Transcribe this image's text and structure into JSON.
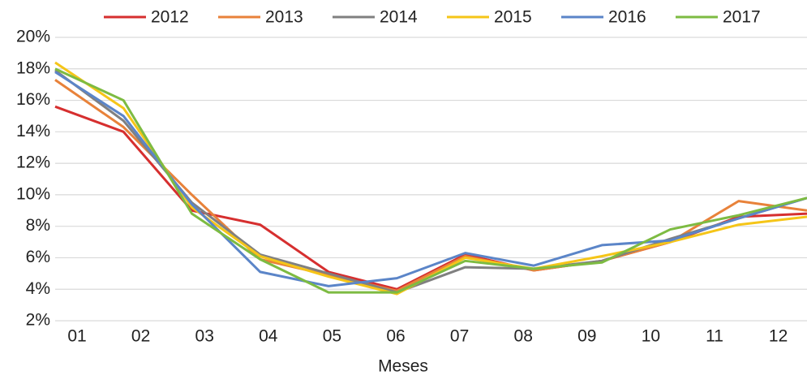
{
  "chart_data": {
    "type": "line",
    "x_label": "Meses",
    "categories": [
      "01",
      "02",
      "03",
      "04",
      "05",
      "06",
      "07",
      "08",
      "09",
      "10",
      "11",
      "12"
    ],
    "series": [
      {
        "name": "2012",
        "color": "#d62f2f",
        "values": [
          15.6,
          14.0,
          9.0,
          8.1,
          5.1,
          4.0,
          6.2,
          5.2,
          5.8,
          7.0,
          8.6,
          8.8
        ]
      },
      {
        "name": "2013",
        "color": "#e8823a",
        "values": [
          17.3,
          14.3,
          10.0,
          5.9,
          4.9,
          3.9,
          6.1,
          5.2,
          5.8,
          7.0,
          9.6,
          9.0
        ]
      },
      {
        "name": "2014",
        "color": "#808080",
        "values": [
          17.9,
          14.7,
          9.5,
          6.2,
          5.0,
          3.8,
          5.4,
          5.3,
          5.8,
          7.2,
          8.5,
          9.8
        ]
      },
      {
        "name": "2015",
        "color": "#f5c518",
        "values": [
          18.4,
          15.5,
          9.2,
          6.1,
          4.8,
          3.7,
          6.0,
          5.3,
          6.1,
          7.0,
          8.1,
          8.6
        ]
      },
      {
        "name": "2016",
        "color": "#5b85c8",
        "values": [
          17.8,
          15.0,
          9.4,
          5.1,
          4.2,
          4.7,
          6.3,
          5.5,
          6.8,
          7.1,
          8.5,
          9.8
        ]
      },
      {
        "name": "2017",
        "color": "#7dbb42",
        "values": [
          18.0,
          16.0,
          8.8,
          5.9,
          3.8,
          3.8,
          5.8,
          5.3,
          5.7,
          7.8,
          8.7,
          9.8
        ]
      }
    ],
    "ylim": [
      2,
      20
    ],
    "yticks": [
      {
        "value": 2,
        "label": "2%"
      },
      {
        "value": 4,
        "label": "4%"
      },
      {
        "value": 6,
        "label": "6%"
      },
      {
        "value": 8,
        "label": "8%"
      },
      {
        "value": 10,
        "label": "10%"
      },
      {
        "value": 12,
        "label": "12%"
      },
      {
        "value": 14,
        "label": "14%"
      },
      {
        "value": 16,
        "label": "16%"
      },
      {
        "value": 18,
        "label": "18%"
      },
      {
        "value": 20,
        "label": "20%"
      }
    ],
    "grid": true,
    "legend": "top"
  }
}
